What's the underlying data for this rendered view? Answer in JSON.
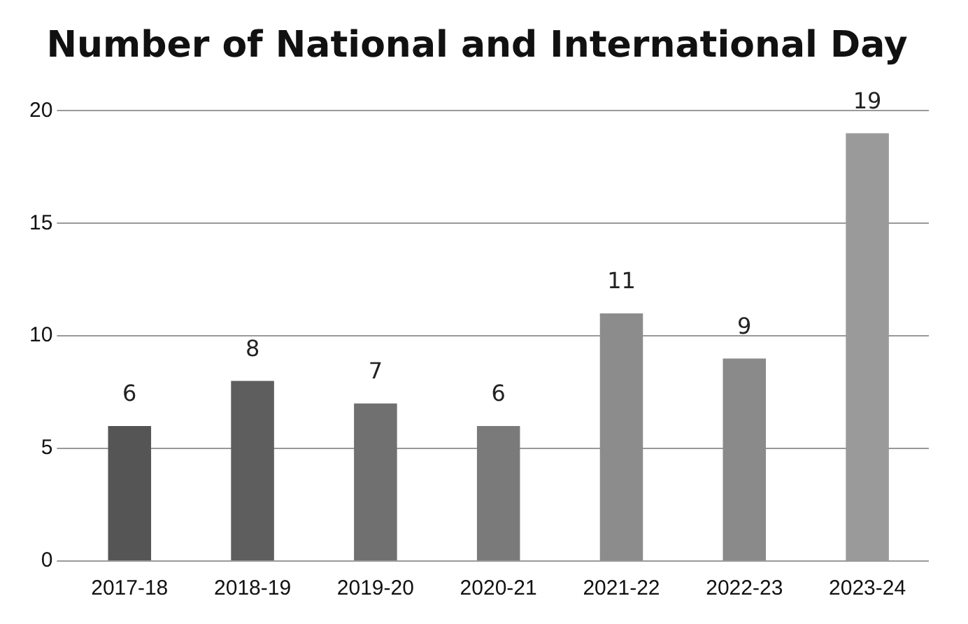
{
  "chart_data": {
    "type": "bar",
    "title": "Number of National and International Day",
    "categories": [
      "2017-18",
      "2018-19",
      "2019-20",
      "2020-21",
      "2021-22",
      "2022-23",
      "2023-24"
    ],
    "values": [
      6,
      8,
      7,
      6,
      11,
      9,
      19
    ],
    "colors": [
      "#555555",
      "#5e5e5e",
      "#707070",
      "#7a7a7a",
      "#8c8c8c",
      "#8a8a8a",
      "#9a9a9a"
    ],
    "ylim": [
      0,
      20
    ],
    "yticks": [
      0,
      5,
      10,
      15,
      20
    ],
    "grid": "y",
    "data_labels": true
  }
}
